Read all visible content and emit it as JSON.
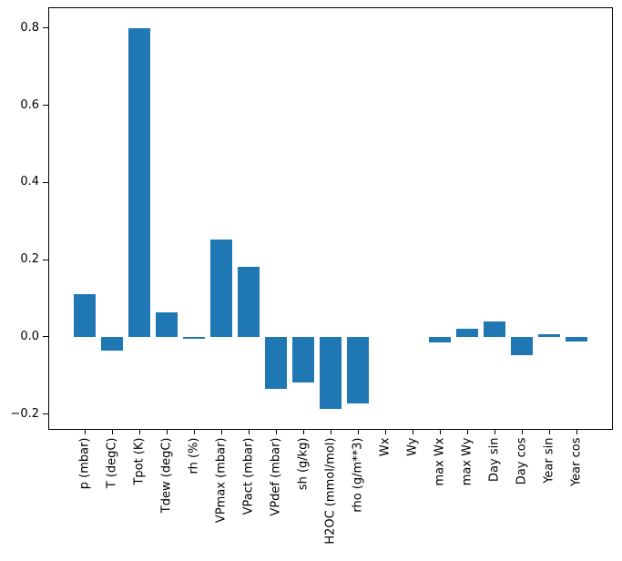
{
  "chart_data": {
    "type": "bar",
    "title": "",
    "xlabel": "",
    "ylabel": "",
    "grid": false,
    "legend": null,
    "bar_color": "#1f77b4",
    "axis_color": "#000000",
    "background_color": "#ffffff",
    "categories": [
      "p (mbar)",
      "T (degC)",
      "Tpot (K)",
      "Tdew (degC)",
      "rh (%)",
      "VPmax (mbar)",
      "VPact (mbar)",
      "VPdef (mbar)",
      "sh (g/kg)",
      "H2OC (mmol/mol)",
      "rho (g/m**3)",
      "Wx",
      "Wy",
      "max Wx",
      "max Wy",
      "Day sin",
      "Day cos",
      "Year sin",
      "Year cos"
    ],
    "values": [
      0.112,
      -0.036,
      0.8,
      0.063,
      -0.004,
      0.252,
      0.182,
      -0.135,
      -0.119,
      -0.186,
      -0.173,
      0.0,
      0.0,
      -0.015,
      0.022,
      0.041,
      -0.048,
      0.007,
      -0.012
    ],
    "yticks": [
      {
        "label": "0.8",
        "value": 0.8
      },
      {
        "label": "0.6",
        "value": 0.6
      },
      {
        "label": "0.4",
        "value": 0.4
      },
      {
        "label": "0.2",
        "value": 0.2
      },
      {
        "label": "0.0",
        "value": 0.0
      },
      {
        "label": "−0.2",
        "value": -0.2
      }
    ],
    "ylim": [
      -0.2406,
      0.8538
    ]
  }
}
